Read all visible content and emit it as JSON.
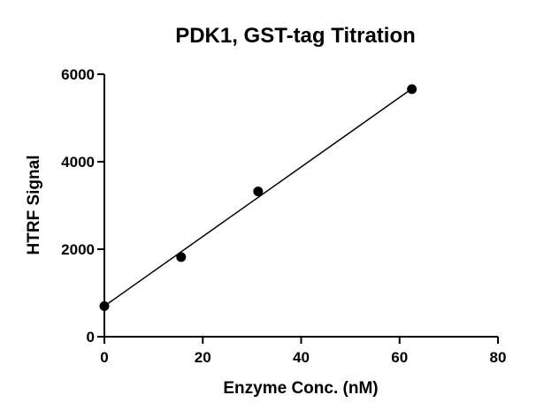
{
  "chart_data": {
    "type": "scatter",
    "title": "PDK1, GST-tag Titration",
    "xlabel": "Enzyme Conc. (nM)",
    "ylabel": "HTRF Signal",
    "xlim": [
      0,
      80
    ],
    "ylim": [
      0,
      6000
    ],
    "x_ticks": [
      0,
      20,
      40,
      60,
      80
    ],
    "y_ticks": [
      0,
      2000,
      4000,
      6000
    ],
    "grid": false,
    "legend": "none",
    "colors": {
      "points": "#000000",
      "line": "#000000",
      "axes": "#000000"
    },
    "series": [
      {
        "points": [
          {
            "x": 0,
            "y": 700
          },
          {
            "x": 15.6,
            "y": 1820
          },
          {
            "x": 31.25,
            "y": 3320
          },
          {
            "x": 62.5,
            "y": 5660
          }
        ],
        "fit_line": {
          "x_start": 0,
          "x_end": 62.5,
          "slope": 79.5,
          "intercept": 700
        }
      }
    ]
  }
}
